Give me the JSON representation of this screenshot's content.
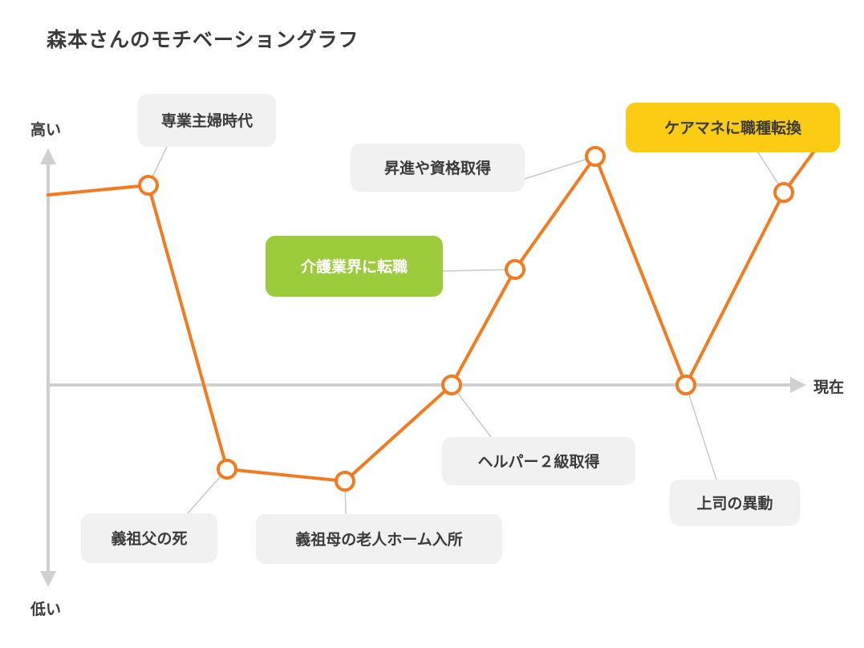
{
  "chart_data": {
    "type": "line",
    "title": "森本さんのモチベーショングラフ",
    "y_axis": {
      "top_label": "高い",
      "bottom_label": "低い",
      "range": [
        -10,
        10
      ]
    },
    "x_axis": {
      "end_label": "現在"
    },
    "series": [
      {
        "color": "#f47a1f",
        "points": [
          {
            "x": 0,
            "y": 7.9,
            "marker": false
          },
          {
            "x": 1,
            "y": 8.3,
            "marker": true
          },
          {
            "x": 2,
            "y": -3.5,
            "marker": true
          },
          {
            "x": 3,
            "y": -4.0,
            "marker": true
          },
          {
            "x": 4,
            "y": 0,
            "marker": true
          },
          {
            "x": 5,
            "y": 4.8,
            "marker": true
          },
          {
            "x": 6,
            "y": 9.5,
            "marker": true
          },
          {
            "x": 7,
            "y": 0,
            "marker": true
          },
          {
            "x": 8,
            "y": 8.0,
            "marker": true
          },
          {
            "x": 9,
            "y": 11.0,
            "marker": false
          }
        ]
      }
    ],
    "annotations": [
      {
        "point": 1,
        "text": "専業主婦時代",
        "style": "gray"
      },
      {
        "point": 2,
        "text": "義祖父の死",
        "style": "gray"
      },
      {
        "point": 3,
        "text": "義祖母の老人ホーム入所",
        "style": "gray"
      },
      {
        "point": 4,
        "text": "ヘルパー２級取得",
        "style": "gray"
      },
      {
        "point": 5,
        "text": "介護業界に転職",
        "style": "green"
      },
      {
        "point": 6,
        "text": "昇進や資格取得",
        "style": "gray"
      },
      {
        "point": 7,
        "text": "上司の異動",
        "style": "gray"
      },
      {
        "point": 8,
        "text": "ケアマネに職種転換",
        "style": "yellow"
      }
    ],
    "colors": {
      "line": "#f47a1f",
      "axis": "#d0d0d0",
      "gray_box": "#f1f1f1",
      "green_box": "#9ccc3b",
      "yellow_box": "#fccc14"
    }
  }
}
